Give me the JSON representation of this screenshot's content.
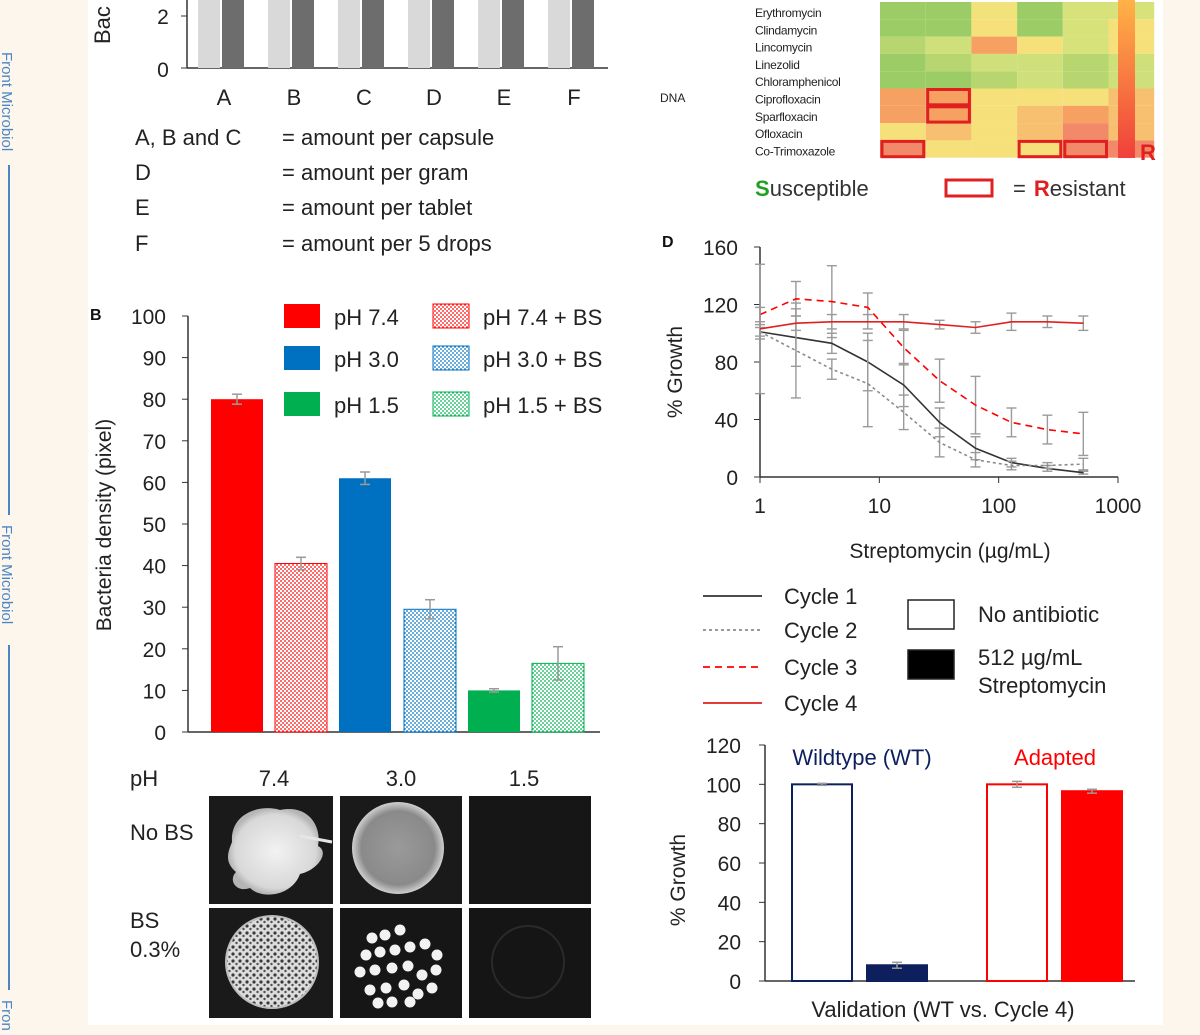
{
  "sidebar": {
    "journal_label": "Front Microbiol",
    "journal_label_cut": "Fron"
  },
  "colors": {
    "ph74": "#ff0000",
    "ph30": "#0070c0",
    "ph15": "#00b050",
    "gray_light": "#d9d9d9",
    "gray_dark": "#6d6d6d",
    "navy": "#0d1f5c",
    "red": "#ff0000",
    "green_text": "#22a022",
    "err": "#9a9a9a"
  },
  "panel_a": {
    "axis_label_partial": "Bac",
    "visible_ticks": [
      "0",
      "2"
    ],
    "categories": [
      "A",
      "B",
      "C",
      "D",
      "E",
      "F"
    ],
    "legend": [
      {
        "key": "A, B and C",
        "desc": "= amount per capsule"
      },
      {
        "key": "D",
        "desc": "= amount per gram"
      },
      {
        "key": "E",
        "desc": "= amount per tablet"
      },
      {
        "key": "F",
        "desc": "= amount per 5 drops"
      }
    ]
  },
  "panel_c": {
    "dna_label": "DNA",
    "antibiotics": [
      "Erythromycin",
      "Clindamycin",
      "Lincomycin",
      "Linezolid",
      "Chloramphenicol",
      "Ciprofloxacin",
      "Sparfloxacin",
      "Ofloxacin",
      "Co-Trimoxazole"
    ],
    "scale_r": "R",
    "legend_susceptible_initial": "S",
    "legend_susceptible_rest": "usceptible",
    "legend_resistant_eq": "=",
    "legend_resistant_initial": "R",
    "legend_resistant_rest": "esistant"
  },
  "panel_b": {
    "panel_letter": "B",
    "plate_header": "pH",
    "plate_cols": [
      "7.4",
      "3.0",
      "1.5"
    ],
    "plate_rows": [
      "No BS",
      "BS",
      "0.3%"
    ]
  },
  "panel_d": {
    "panel_letter": "D"
  },
  "chart_data": [
    {
      "type": "bar",
      "id": "ph-bile-density",
      "ylabel": "Bacteria density (pixel)",
      "ylim": [
        0,
        100
      ],
      "yticks": [
        "0",
        "10",
        "20",
        "30",
        "40",
        "50",
        "60",
        "70",
        "80",
        "90",
        "100"
      ],
      "series": [
        {
          "name": "pH 7.4",
          "value": 80,
          "err": 1.2,
          "color": "#ff0000",
          "pattern": "solid"
        },
        {
          "name": "pH 7.4 + BS",
          "value": 40.5,
          "err": 1.5,
          "color": "#ff0000",
          "pattern": "dots"
        },
        {
          "name": "pH 3.0",
          "value": 61,
          "err": 1.5,
          "color": "#0070c0",
          "pattern": "solid"
        },
        {
          "name": "pH 3.0 + BS",
          "value": 29.5,
          "err": 2.3,
          "color": "#0070c0",
          "pattern": "dots"
        },
        {
          "name": "pH 1.5",
          "value": 10,
          "err": 0.4,
          "color": "#00b050",
          "pattern": "solid"
        },
        {
          "name": "pH 1.5 + BS",
          "value": 16.5,
          "err": 4,
          "color": "#00b050",
          "pattern": "dots"
        }
      ],
      "legend_order": [
        "pH 7.4",
        "pH 7.4 + BS",
        "pH 3.0",
        "pH 3.0 + BS",
        "pH 1.5",
        "pH 1.5 + BS"
      ]
    },
    {
      "type": "line",
      "id": "streptomycin-adaptation",
      "xlabel": "Streptomycin (µg/mL)",
      "ylabel": "% Growth",
      "xscale": "log",
      "xlim": [
        1,
        1000
      ],
      "ylim": [
        0,
        160
      ],
      "xticks": [
        "1",
        "10",
        "100",
        "1000"
      ],
      "yticks": [
        "0",
        "40",
        "80",
        "120",
        "160"
      ],
      "x": [
        1,
        2,
        4,
        8,
        16,
        32,
        64,
        128,
        256,
        512
      ],
      "series": [
        {
          "name": "Cycle 1",
          "color": "#333333",
          "dash": "solid",
          "values": [
            101,
            97,
            93,
            80,
            64,
            38,
            20,
            10,
            6,
            3
          ],
          "err": [
            5,
            20,
            7,
            20,
            15,
            10,
            8,
            3,
            2,
            1
          ]
        },
        {
          "name": "Cycle 2",
          "color": "#8a8a8a",
          "dash": "dotted",
          "values": [
            101,
            88,
            75,
            65,
            45,
            24,
            12,
            8,
            8,
            9
          ],
          "err": [
            3,
            33,
            7,
            30,
            12,
            10,
            5,
            3,
            2,
            4
          ]
        },
        {
          "name": "Cycle 3",
          "color": "#ff0000",
          "dash": "dashed",
          "values": [
            113,
            124,
            122,
            118,
            90,
            67,
            50,
            38,
            33,
            30
          ],
          "err": [
            5,
            12,
            25,
            10,
            12,
            15,
            20,
            10,
            10,
            15
          ]
        },
        {
          "name": "Cycle 4",
          "color": "#e02020",
          "dash": "solid",
          "values": [
            103,
            107,
            108,
            108,
            108,
            106,
            104,
            108,
            108,
            107
          ],
          "err": [
            45,
            5,
            5,
            5,
            5,
            3,
            4,
            6,
            4,
            5
          ]
        }
      ],
      "extra_legend": [
        {
          "name": "No antibiotic",
          "fill": "#ffffff"
        },
        {
          "name": "512 µg/mL",
          "name2": "Streptomycin",
          "fill": "#000000"
        }
      ]
    },
    {
      "type": "bar",
      "id": "validation-wt-vs-cycle4",
      "xlabel": "Validation (WT vs. Cycle 4)",
      "ylabel": "% Growth",
      "ylim": [
        0,
        120
      ],
      "yticks": [
        "0",
        "20",
        "40",
        "60",
        "80",
        "100",
        "120"
      ],
      "groups": [
        {
          "name": "Wildtype (WT)",
          "color": "#0d1f5c",
          "bars": [
            {
              "label": "No antibiotic",
              "value": 100,
              "err": 0.5,
              "filled": false
            },
            {
              "label": "512 µg/mL Streptomycin",
              "value": 8,
              "err": 1.5,
              "filled": true
            }
          ]
        },
        {
          "name": "Adapted",
          "color": "#ff0000",
          "bars": [
            {
              "label": "No antibiotic",
              "value": 100,
              "err": 1.5,
              "filled": false
            },
            {
              "label": "512 µg/mL Streptomycin",
              "value": 96.5,
              "err": 1,
              "filled": true
            }
          ]
        }
      ]
    }
  ]
}
